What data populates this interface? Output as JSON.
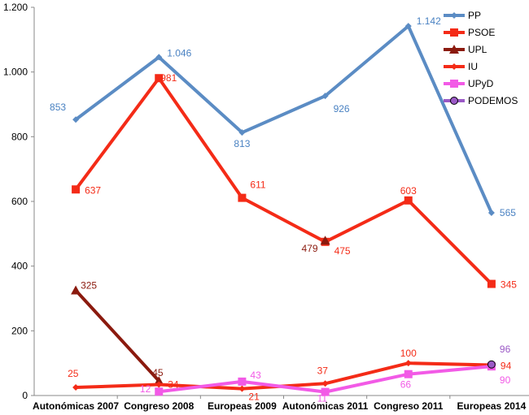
{
  "chart_data": {
    "type": "line",
    "categories": [
      "Autonómicas 2007",
      "Congreso 2008",
      "Europeas 2009",
      "Autonómicas 2011",
      "Congreso 2011",
      "Europeas 2014"
    ],
    "ylim": [
      0,
      1200
    ],
    "yticks": [
      0,
      200,
      400,
      600,
      800,
      1000,
      1200
    ],
    "ytick_labels": [
      "0",
      "200",
      "400",
      "600",
      "800",
      "1.000",
      "1.200"
    ],
    "grid": false,
    "legend_position": "top-right",
    "series": [
      {
        "name": "PP",
        "color": "#5b8cc4",
        "marker": "diamond",
        "values": [
          853,
          1046,
          813,
          926,
          1142,
          565
        ],
        "labels": [
          "853",
          "1.046",
          "813",
          "926",
          "1.142",
          "565"
        ]
      },
      {
        "name": "PSOE",
        "color": "#f42b17",
        "marker": "square",
        "values": [
          637,
          981,
          611,
          475,
          603,
          345
        ],
        "labels": [
          "637",
          "981",
          "611",
          "475",
          "603",
          "345"
        ]
      },
      {
        "name": "UPL",
        "color": "#8b1a0e",
        "marker": "triangle",
        "values": [
          325,
          45,
          null,
          479,
          null,
          null
        ],
        "labels": [
          "325",
          "45",
          "",
          "479",
          "",
          ""
        ]
      },
      {
        "name": "IU",
        "color": "#f42b17",
        "marker": "diamond",
        "values": [
          25,
          34,
          21,
          37,
          100,
          94
        ],
        "labels": [
          "25",
          "34",
          "21",
          "37",
          "100",
          "94"
        ]
      },
      {
        "name": "UPyD",
        "color": "#f25ae6",
        "marker": "square",
        "values": [
          null,
          12,
          43,
          11,
          66,
          90
        ],
        "labels": [
          "",
          "12",
          "43",
          "11",
          "66",
          "90"
        ]
      },
      {
        "name": "PODEMOS",
        "color": "#9b59c6",
        "marker": "circle",
        "values": [
          null,
          null,
          null,
          null,
          null,
          96
        ],
        "labels": [
          "",
          "",
          "",
          "",
          "",
          "96"
        ]
      }
    ]
  }
}
